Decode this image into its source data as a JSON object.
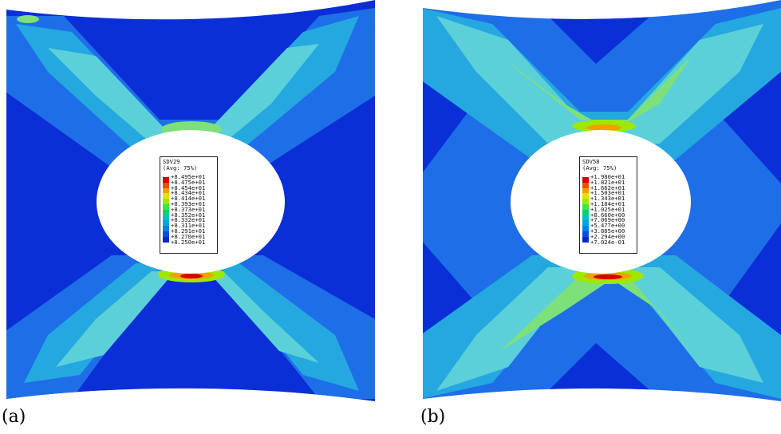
{
  "colormap": [
    "#d60000",
    "#e85000",
    "#f2a000",
    "#e8e000",
    "#9ee800",
    "#3ee83a",
    "#00d27a",
    "#00c2c2",
    "#00a6e0",
    "#0082e8",
    "#0050e0",
    "#0028cc"
  ],
  "colors": {
    "background_blue": "#0a2fd6",
    "mid_blue": "#1e6ee8",
    "cyan": "#25a8e0",
    "light_cyan": "#5cd0d8",
    "green": "#7ee07a"
  },
  "panels": [
    {
      "caption": "(a)",
      "legend": {
        "variable": "SDV29",
        "avg": "(Avg: 75%)",
        "labels": [
          "+8.495e+01",
          "+8.475e+01",
          "+8.454e+01",
          "+8.434e+01",
          "+8.414e+01",
          "+8.393e+01",
          "+8.373e+01",
          "+8.352e+01",
          "+8.332e+01",
          "+8.311e+01",
          "+8.291e+01",
          "+8.270e+01",
          "+8.250e+01"
        ]
      }
    },
    {
      "caption": "(b)",
      "legend": {
        "variable": "SDV58",
        "avg": "(Avg: 75%)",
        "labels": [
          "+1.980e+01",
          "+1.821e+01",
          "+1.662e+01",
          "+1.503e+01",
          "+1.343e+01",
          "+1.184e+01",
          "+1.025e+01",
          "+8.660e+00",
          "+7.069e+00",
          "+5.477e+00",
          "+3.885e+00",
          "+2.294e+00",
          "+7.024e-01"
        ]
      }
    }
  ]
}
